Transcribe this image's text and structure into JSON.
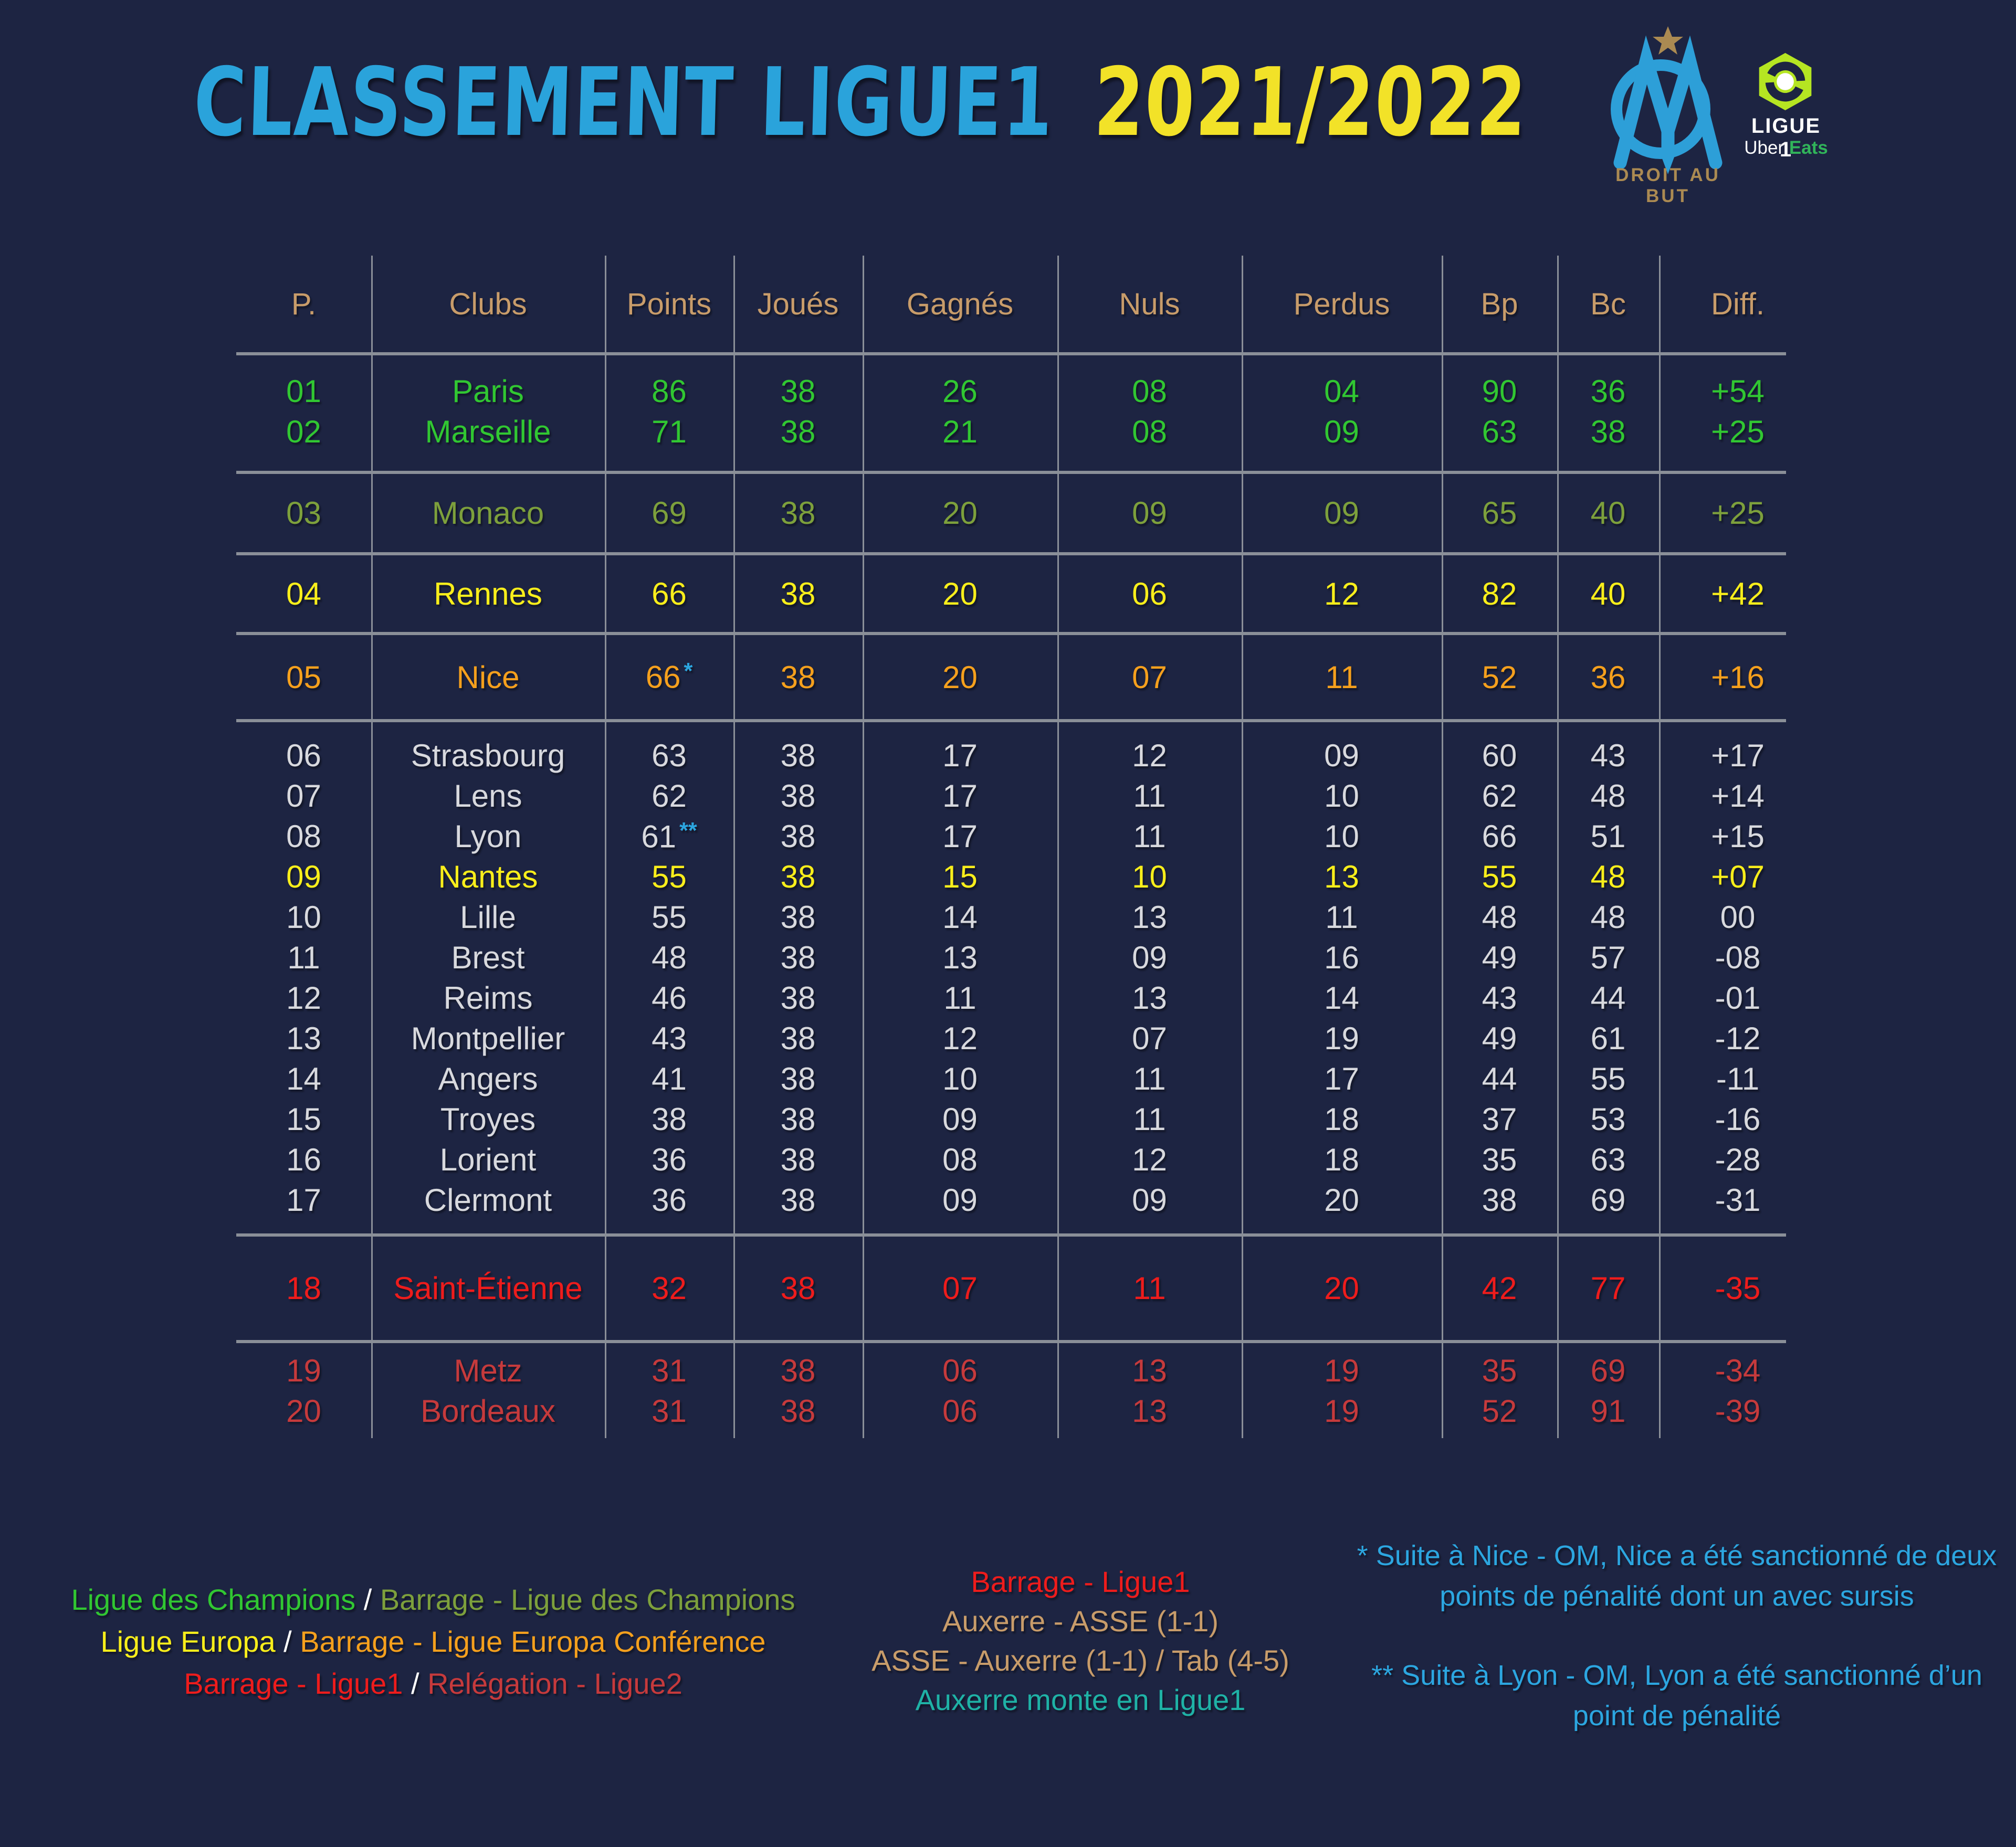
{
  "title": {
    "main": "CLASSEMENT LIGUE1",
    "season": "2021/2022"
  },
  "logos": {
    "om": {
      "motto": "DROIT AU BUT"
    },
    "ligue1": {
      "name": "LIGUE 1",
      "uber": "Uber",
      "eats": "Eats"
    }
  },
  "chart_data": {
    "type": "table",
    "title": "Classement Ligue1 2021/2022",
    "columns": [
      "P.",
      "Clubs",
      "Points",
      "Joués",
      "Gagnés",
      "Nuls",
      "Perdus",
      "Bp",
      "Bc",
      "Diff."
    ],
    "blocks": [
      {
        "zone": "ligue-des-champions",
        "rows": [
          {
            "pos": "01",
            "club": "Paris",
            "points": "86",
            "note": "",
            "joues": "38",
            "gagnes": "26",
            "nuls": "08",
            "perdus": "04",
            "bp": "90",
            "bc": "36",
            "diff": "+54",
            "variant": "green"
          },
          {
            "pos": "02",
            "club": "Marseille",
            "points": "71",
            "note": "",
            "joues": "38",
            "gagnes": "21",
            "nuls": "08",
            "perdus": "09",
            "bp": "63",
            "bc": "38",
            "diff": "+25",
            "variant": "green"
          }
        ]
      },
      {
        "zone": "barrage-ligue-des-champions",
        "rows": [
          {
            "pos": "03",
            "club": "Monaco",
            "points": "69",
            "note": "",
            "joues": "38",
            "gagnes": "20",
            "nuls": "09",
            "perdus": "09",
            "bp": "65",
            "bc": "40",
            "diff": "+25",
            "variant": "olive"
          }
        ]
      },
      {
        "zone": "ligue-europa",
        "rows": [
          {
            "pos": "04",
            "club": "Rennes",
            "points": "66",
            "note": "",
            "joues": "38",
            "gagnes": "20",
            "nuls": "06",
            "perdus": "12",
            "bp": "82",
            "bc": "40",
            "diff": "+42",
            "variant": "yellow"
          }
        ]
      },
      {
        "zone": "barrage-ligue-europa-conference",
        "rows": [
          {
            "pos": "05",
            "club": "Nice",
            "points": "66",
            "note": "*",
            "joues": "38",
            "gagnes": "20",
            "nuls": "07",
            "perdus": "11",
            "bp": "52",
            "bc": "36",
            "diff": "+16",
            "variant": "orange"
          }
        ]
      },
      {
        "zone": "maintien",
        "rows": [
          {
            "pos": "06",
            "club": "Strasbourg",
            "points": "63",
            "note": "",
            "joues": "38",
            "gagnes": "17",
            "nuls": "12",
            "perdus": "09",
            "bp": "60",
            "bc": "43",
            "diff": "+17",
            "variant": "white"
          },
          {
            "pos": "07",
            "club": "Lens",
            "points": "62",
            "note": "",
            "joues": "38",
            "gagnes": "17",
            "nuls": "11",
            "perdus": "10",
            "bp": "62",
            "bc": "48",
            "diff": "+14",
            "variant": "white"
          },
          {
            "pos": "08",
            "club": "Lyon",
            "points": "61",
            "note": "**",
            "joues": "38",
            "gagnes": "17",
            "nuls": "11",
            "perdus": "10",
            "bp": "66",
            "bc": "51",
            "diff": "+15",
            "variant": "white"
          },
          {
            "pos": "09",
            "club": "Nantes",
            "points": "55",
            "note": "",
            "joues": "38",
            "gagnes": "15",
            "nuls": "10",
            "perdus": "13",
            "bp": "55",
            "bc": "48",
            "diff": "+07",
            "variant": "yellow"
          },
          {
            "pos": "10",
            "club": "Lille",
            "points": "55",
            "note": "",
            "joues": "38",
            "gagnes": "14",
            "nuls": "13",
            "perdus": "11",
            "bp": "48",
            "bc": "48",
            "diff": "00",
            "variant": "white"
          },
          {
            "pos": "11",
            "club": "Brest",
            "points": "48",
            "note": "",
            "joues": "38",
            "gagnes": "13",
            "nuls": "09",
            "perdus": "16",
            "bp": "49",
            "bc": "57",
            "diff": "-08",
            "variant": "white"
          },
          {
            "pos": "12",
            "club": "Reims",
            "points": "46",
            "note": "",
            "joues": "38",
            "gagnes": "11",
            "nuls": "13",
            "perdus": "14",
            "bp": "43",
            "bc": "44",
            "diff": "-01",
            "variant": "white"
          },
          {
            "pos": "13",
            "club": "Montpellier",
            "points": "43",
            "note": "",
            "joues": "38",
            "gagnes": "12",
            "nuls": "07",
            "perdus": "19",
            "bp": "49",
            "bc": "61",
            "diff": "-12",
            "variant": "white"
          },
          {
            "pos": "14",
            "club": "Angers",
            "points": "41",
            "note": "",
            "joues": "38",
            "gagnes": "10",
            "nuls": "11",
            "perdus": "17",
            "bp": "44",
            "bc": "55",
            "diff": "-11",
            "variant": "white"
          },
          {
            "pos": "15",
            "club": "Troyes",
            "points": "38",
            "note": "",
            "joues": "38",
            "gagnes": "09",
            "nuls": "11",
            "perdus": "18",
            "bp": "37",
            "bc": "53",
            "diff": "-16",
            "variant": "white"
          },
          {
            "pos": "16",
            "club": "Lorient",
            "points": "36",
            "note": "",
            "joues": "38",
            "gagnes": "08",
            "nuls": "12",
            "perdus": "18",
            "bp": "35",
            "bc": "63",
            "diff": "-28",
            "variant": "white"
          },
          {
            "pos": "17",
            "club": "Clermont",
            "points": "36",
            "note": "",
            "joues": "38",
            "gagnes": "09",
            "nuls": "09",
            "perdus": "20",
            "bp": "38",
            "bc": "69",
            "diff": "-31",
            "variant": "white"
          }
        ]
      },
      {
        "zone": "barrage-ligue1",
        "rows": [
          {
            "pos": "18",
            "club": "Saint-Étienne",
            "points": "32",
            "note": "",
            "joues": "38",
            "gagnes": "07",
            "nuls": "11",
            "perdus": "20",
            "bp": "42",
            "bc": "77",
            "diff": "-35",
            "variant": "red"
          }
        ]
      },
      {
        "zone": "relegation-ligue2",
        "rows": [
          {
            "pos": "19",
            "club": "Metz",
            "points": "31",
            "note": "",
            "joues": "38",
            "gagnes": "06",
            "nuls": "13",
            "perdus": "19",
            "bp": "35",
            "bc": "69",
            "diff": "-34",
            "variant": "darkred"
          },
          {
            "pos": "20",
            "club": "Bordeaux",
            "points": "31",
            "note": "",
            "joues": "38",
            "gagnes": "06",
            "nuls": "13",
            "perdus": "19",
            "bp": "52",
            "bc": "91",
            "diff": "-39",
            "variant": "darkred"
          }
        ]
      }
    ]
  },
  "legend": {
    "lines": [
      {
        "segments": [
          {
            "text": "Ligue des Champions",
            "variant": "green"
          },
          {
            "text": " / ",
            "variant": "white_pure"
          },
          {
            "text": "Barrage - Ligue des Champions",
            "variant": "olive"
          }
        ]
      },
      {
        "segments": [
          {
            "text": "Ligue Europa",
            "variant": "yellow"
          },
          {
            "text": " / ",
            "variant": "white_pure"
          },
          {
            "text": "Barrage - Ligue Europa Conférence",
            "variant": "orange"
          }
        ]
      },
      {
        "segments": [
          {
            "text": "Barrage - Ligue1",
            "variant": "red"
          },
          {
            "text": " / ",
            "variant": "white_pure"
          },
          {
            "text": "Relégation - Ligue2",
            "variant": "darkred"
          }
        ]
      }
    ]
  },
  "playoff": {
    "title": "Barrage - Ligue1",
    "match1": "Auxerre - ASSE (1-1)",
    "match2": "ASSE - Auxerre (1-1) / Tab (4-5)",
    "result": "Auxerre monte en Ligue1"
  },
  "notes": {
    "items": [
      {
        "text": "* Suite à Nice - OM, Nice a été sanctionné de deux points de pénalité dont un avec sursis"
      },
      {
        "text": "** Suite à Lyon - OM, Lyon a été sanctionné d’un point de pénalité"
      }
    ]
  },
  "colors": {
    "background": "#1d2442",
    "grid_line": "#8a8f98",
    "header_tan": "#c89c6a",
    "green": "#31c732",
    "olive": "#7da03c",
    "yellow": "#f9ee1b",
    "orange": "#f5a01d",
    "white": "#d8d9de",
    "white_pure": "#ffffff",
    "red": "#ee1c1c",
    "darkred": "#c63a3c",
    "blue": "#2ca6e0",
    "teal": "#1fb2a6",
    "title_blue": "#2aa3db",
    "title_yellow": "#f2e228",
    "om_blue": "#2d9fd8",
    "om_gold": "#ab8a52",
    "ligue1_green": "#b5e522",
    "eats_green": "#31b45a"
  }
}
